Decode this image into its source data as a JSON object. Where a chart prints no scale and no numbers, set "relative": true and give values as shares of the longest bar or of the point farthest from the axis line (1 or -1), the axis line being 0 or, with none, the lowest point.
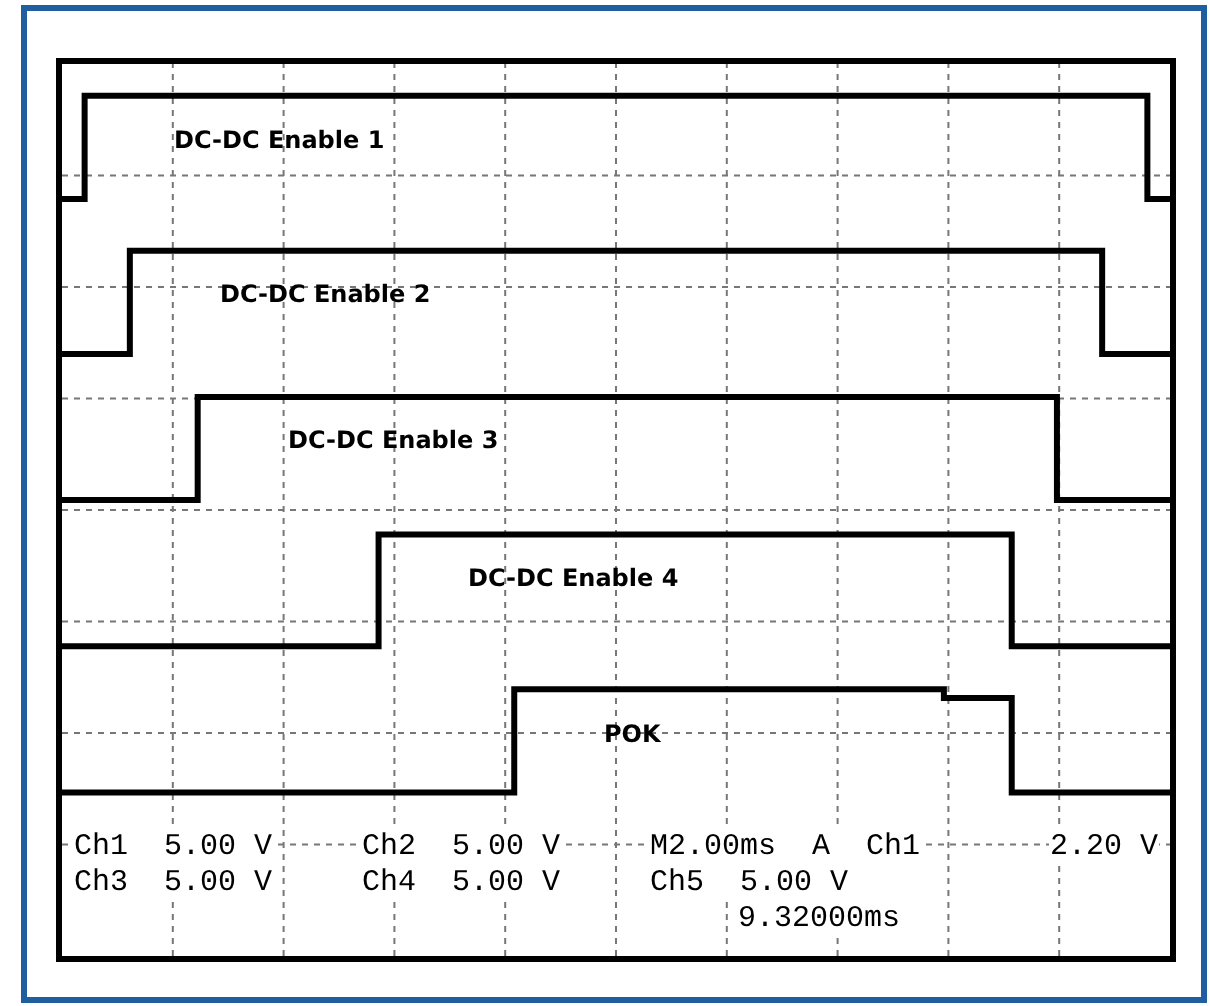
{
  "chart_data": {
    "type": "step",
    "relative": true,
    "grid": true,
    "legend": false,
    "marker": "none",
    "line_style": "solid",
    "categories": [
      null,
      null,
      null,
      null,
      null,
      null,
      null,
      null,
      null,
      null,
      null,
      null,
      null,
      null,
      null,
      null,
      null,
      null,
      null,
      null,
      null,
      null,
      null,
      null,
      null,
      null,
      null,
      null,
      null,
      null,
      null,
      null,
      null,
      null,
      null,
      null,
      null,
      null,
      null,
      null,
      null,
      null,
      null,
      null,
      null,
      null,
      null,
      null,
      null,
      null
    ],
    "series": [
      {
        "name": "DC-DC Enable 1",
        "color": "#000000",
        "values": [
          0.88,
          1.0,
          1.0,
          1.0,
          1.0,
          1.0,
          1.0,
          1.0,
          1.0,
          1.0,
          1.0,
          1.0,
          1.0,
          1.0,
          1.0,
          1.0,
          1.0,
          1.0,
          1.0,
          1.0,
          1.0,
          1.0,
          1.0,
          1.0,
          1.0,
          1.0,
          1.0,
          1.0,
          1.0,
          1.0,
          1.0,
          1.0,
          1.0,
          1.0,
          1.0,
          1.0,
          1.0,
          1.0,
          1.0,
          1.0,
          1.0,
          1.0,
          1.0,
          1.0,
          1.0,
          1.0,
          1.0,
          1.0,
          0.88,
          0.88
        ]
      },
      {
        "name": "DC-DC Enable 2",
        "color": "#000000",
        "values": [
          0.7,
          0.7,
          0.7,
          0.82,
          0.82,
          0.82,
          0.82,
          0.82,
          0.82,
          0.82,
          0.82,
          0.82,
          0.82,
          0.82,
          0.82,
          0.82,
          0.82,
          0.82,
          0.82,
          0.82,
          0.82,
          0.82,
          0.82,
          0.82,
          0.82,
          0.82,
          0.82,
          0.82,
          0.82,
          0.82,
          0.82,
          0.82,
          0.82,
          0.82,
          0.82,
          0.82,
          0.82,
          0.82,
          0.82,
          0.82,
          0.82,
          0.82,
          0.82,
          0.82,
          0.82,
          0.82,
          0.7,
          0.7,
          0.7,
          0.7
        ]
      },
      {
        "name": "DC-DC Enable 3",
        "color": "#000000",
        "values": [
          0.53,
          0.53,
          0.53,
          0.53,
          0.53,
          0.53,
          0.65,
          0.65,
          0.65,
          0.65,
          0.65,
          0.65,
          0.65,
          0.65,
          0.65,
          0.65,
          0.65,
          0.65,
          0.65,
          0.65,
          0.65,
          0.65,
          0.65,
          0.65,
          0.65,
          0.65,
          0.65,
          0.65,
          0.65,
          0.65,
          0.65,
          0.65,
          0.65,
          0.65,
          0.65,
          0.65,
          0.65,
          0.65,
          0.65,
          0.65,
          0.65,
          0.65,
          0.65,
          0.65,
          0.53,
          0.53,
          0.53,
          0.53,
          0.53,
          0.53
        ]
      },
      {
        "name": "DC-DC Enable 4",
        "color": "#000000",
        "values": [
          0.36,
          0.36,
          0.36,
          0.36,
          0.36,
          0.36,
          0.36,
          0.36,
          0.36,
          0.36,
          0.36,
          0.36,
          0.36,
          0.36,
          0.49,
          0.49,
          0.49,
          0.49,
          0.49,
          0.49,
          0.49,
          0.49,
          0.49,
          0.49,
          0.49,
          0.49,
          0.49,
          0.49,
          0.49,
          0.49,
          0.49,
          0.49,
          0.49,
          0.49,
          0.49,
          0.49,
          0.49,
          0.49,
          0.49,
          0.49,
          0.49,
          0.49,
          0.36,
          0.36,
          0.36,
          0.36,
          0.36,
          0.36,
          0.36,
          0.36
        ]
      },
      {
        "name": "POK",
        "color": "#000000",
        "values": [
          0.19,
          0.19,
          0.19,
          0.19,
          0.19,
          0.19,
          0.19,
          0.19,
          0.19,
          0.19,
          0.19,
          0.19,
          0.19,
          0.19,
          0.19,
          0.19,
          0.19,
          0.19,
          0.19,
          0.19,
          0.31,
          0.31,
          0.31,
          0.31,
          0.31,
          0.31,
          0.31,
          0.31,
          0.31,
          0.31,
          0.31,
          0.31,
          0.31,
          0.31,
          0.31,
          0.31,
          0.31,
          0.31,
          0.31,
          0.3,
          0.3,
          0.3,
          0.19,
          0.19,
          0.19,
          0.19,
          0.19,
          0.19,
          0.19,
          0.19
        ]
      }
    ],
    "annotations": [
      "Ch1  5.00 V",
      "Ch2  5.00 V",
      "M2.00ms  A  Ch1",
      "2.20 V",
      "Ch3  5.00 V",
      "Ch4  5.00 V",
      "Ch5  5.00 V",
      "9.32000ms"
    ]
  }
}
